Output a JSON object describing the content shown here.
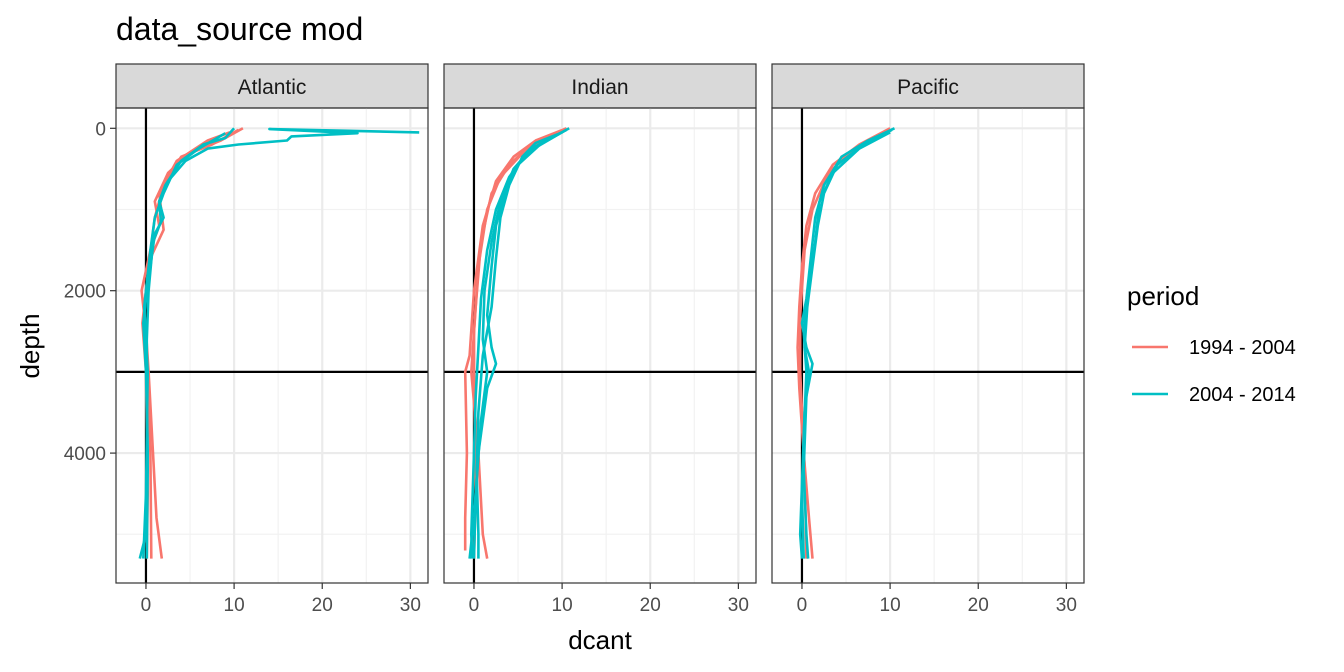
{
  "chart_data": {
    "type": "line",
    "title": "data_source mod",
    "xlabel": "dcant",
    "ylabel": "depth",
    "xlim": [
      -3.4,
      32.0
    ],
    "ylim": [
      5600,
      -250
    ],
    "y_reversed": true,
    "x_ticks": [
      0,
      10,
      20,
      30
    ],
    "y_ticks": [
      0,
      2000,
      4000
    ],
    "grid": true,
    "vline_x": 0,
    "hline_y": 3000,
    "legend": {
      "title": "period",
      "position": "right",
      "entries": [
        {
          "label": "1994 - 2004",
          "color": "#F8766D"
        },
        {
          "label": "2004 - 2014",
          "color": "#00BFC4"
        }
      ]
    },
    "panels": [
      {
        "name": "Atlantic",
        "lines": [
          {
            "period": "1994 - 2004",
            "points": [
              [
                11,
                0
              ],
              [
                8.5,
                150
              ],
              [
                5,
                300
              ],
              [
                2.5,
                550
              ],
              [
                1,
                900
              ],
              [
                1.5,
                1200
              ],
              [
                0.5,
                1500
              ],
              [
                -0.5,
                2000
              ],
              [
                0,
                2500
              ],
              [
                0.3,
                3000
              ],
              [
                0.8,
                4000
              ],
              [
                1.2,
                4800
              ],
              [
                1.8,
                5300
              ]
            ]
          },
          {
            "period": "1994 - 2004",
            "points": [
              [
                9.5,
                50
              ],
              [
                7,
                150
              ],
              [
                3.5,
                400
              ],
              [
                1.5,
                800
              ],
              [
                2,
                1250
              ],
              [
                0.5,
                1600
              ],
              [
                -0.2,
                2200
              ],
              [
                0.2,
                3000
              ],
              [
                0.5,
                4000
              ],
              [
                0.6,
                5300
              ]
            ]
          },
          {
            "period": "1994 - 2004",
            "points": [
              [
                10.5,
                20
              ],
              [
                7.5,
                200
              ],
              [
                4,
                350
              ],
              [
                2,
                700
              ],
              [
                1,
                1100
              ],
              [
                0.2,
                1800
              ],
              [
                -0.4,
                2400
              ],
              [
                0,
                3000
              ],
              [
                0.2,
                4500
              ],
              [
                0.1,
                5300
              ]
            ]
          },
          {
            "period": "2004 - 2014",
            "points": [
              [
                10,
                0
              ],
              [
                9,
                120
              ],
              [
                6.5,
                200
              ],
              [
                4,
                400
              ],
              [
                2.2,
                700
              ],
              [
                1.5,
                900
              ],
              [
                2,
                1100
              ],
              [
                1,
                1300
              ],
              [
                0.5,
                1700
              ],
              [
                0,
                2100
              ],
              [
                -0.3,
                2400
              ],
              [
                0,
                3000
              ],
              [
                0.2,
                4000
              ],
              [
                0,
                5000
              ],
              [
                -0.7,
                5300
              ]
            ]
          },
          {
            "period": "2004 - 2014",
            "points": [
              [
                31,
                50
              ],
              [
                14,
                10
              ],
              [
                24,
                60
              ],
              [
                16.5,
                100
              ],
              [
                16,
                150
              ],
              [
                10.5,
                200
              ],
              [
                7,
                250
              ],
              [
                4.5,
                400
              ],
              [
                2.5,
                650
              ],
              [
                1.5,
                900
              ],
              [
                1.7,
                1150
              ],
              [
                0.8,
                1400
              ],
              [
                0.3,
                2000
              ],
              [
                0.1,
                2600
              ],
              [
                0.1,
                3000
              ],
              [
                0.2,
                4200
              ],
              [
                0.1,
                5300
              ]
            ]
          },
          {
            "period": "2004 - 2014",
            "points": [
              [
                9,
                60
              ],
              [
                6,
                250
              ],
              [
                3.5,
                450
              ],
              [
                2,
                800
              ],
              [
                1,
                1100
              ],
              [
                0.5,
                1500
              ],
              [
                -0.2,
                2200
              ],
              [
                0.2,
                3000
              ],
              [
                0,
                4500
              ],
              [
                -0.3,
                5300
              ]
            ]
          }
        ]
      },
      {
        "name": "Indian",
        "lines": [
          {
            "period": "1994 - 2004",
            "points": [
              [
                10.5,
                0
              ],
              [
                7,
                150
              ],
              [
                4.5,
                350
              ],
              [
                2.5,
                650
              ],
              [
                1,
                1200
              ],
              [
                0,
                2000
              ],
              [
                -0.5,
                2800
              ],
              [
                -1,
                3000
              ],
              [
                -0.8,
                4000
              ],
              [
                -1,
                4800
              ],
              [
                -1,
                5200
              ]
            ]
          },
          {
            "period": "1994 - 2004",
            "points": [
              [
                9.5,
                50
              ],
              [
                6.5,
                200
              ],
              [
                4,
                450
              ],
              [
                2,
                800
              ],
              [
                0.8,
                1400
              ],
              [
                0.2,
                2200
              ],
              [
                -0.3,
                3000
              ],
              [
                0.5,
                4000
              ],
              [
                1,
                5000
              ],
              [
                1.5,
                5300
              ]
            ]
          },
          {
            "period": "1994 - 2004",
            "points": [
              [
                10,
                30
              ],
              [
                6,
                250
              ],
              [
                3,
                600
              ],
              [
                1.5,
                1000
              ],
              [
                0.5,
                1700
              ],
              [
                0,
                2500
              ],
              [
                0,
                3000
              ],
              [
                0.2,
                4500
              ],
              [
                0,
                5300
              ]
            ]
          },
          {
            "period": "2004 - 2014",
            "points": [
              [
                10.8,
                0
              ],
              [
                7.5,
                200
              ],
              [
                5,
                450
              ],
              [
                3.5,
                800
              ],
              [
                2.5,
                1200
              ],
              [
                2,
                1700
              ],
              [
                1.5,
                2300
              ],
              [
                2,
                2700
              ],
              [
                2.5,
                2900
              ],
              [
                1.5,
                3200
              ],
              [
                0.5,
                4000
              ],
              [
                0,
                4800
              ],
              [
                -0.5,
                5300
              ]
            ]
          },
          {
            "period": "2004 - 2014",
            "points": [
              [
                10.5,
                20
              ],
              [
                6.5,
                250
              ],
              [
                4.5,
                500
              ],
              [
                3,
                900
              ],
              [
                2,
                1400
              ],
              [
                1.2,
                2000
              ],
              [
                1,
                2600
              ],
              [
                1.5,
                3000
              ],
              [
                0.8,
                3600
              ],
              [
                0.2,
                4500
              ],
              [
                0,
                5300
              ]
            ]
          },
          {
            "period": "2004 - 2014",
            "points": [
              [
                10,
                50
              ],
              [
                7,
                180
              ],
              [
                5.5,
                350
              ],
              [
                4,
                700
              ],
              [
                3,
                1100
              ],
              [
                2.5,
                1600
              ],
              [
                2,
                2200
              ],
              [
                1,
                2800
              ],
              [
                0.5,
                3500
              ],
              [
                0.3,
                4200
              ],
              [
                0.5,
                5000
              ],
              [
                0.5,
                5300
              ]
            ]
          },
          {
            "period": "2004 - 2014",
            "points": [
              [
                9.8,
                60
              ],
              [
                6,
                300
              ],
              [
                4,
                600
              ],
              [
                2.5,
                1000
              ],
              [
                1.5,
                1500
              ],
              [
                0.8,
                2100
              ],
              [
                0.5,
                2700
              ],
              [
                0.2,
                3300
              ],
              [
                0,
                4000
              ],
              [
                -0.3,
                5000
              ],
              [
                -0.2,
                5300
              ]
            ]
          }
        ]
      },
      {
        "name": "Pacific",
        "lines": [
          {
            "period": "1994 - 2004",
            "points": [
              [
                10,
                0
              ],
              [
                6.5,
                200
              ],
              [
                3.5,
                450
              ],
              [
                1.5,
                800
              ],
              [
                0.5,
                1200
              ],
              [
                0,
                1700
              ],
              [
                -0.3,
                2200
              ],
              [
                -0.5,
                2700
              ],
              [
                -0.3,
                3200
              ],
              [
                0.2,
                4000
              ],
              [
                0.8,
                4800
              ],
              [
                1.2,
                5300
              ]
            ]
          },
          {
            "period": "1994 - 2004",
            "points": [
              [
                9.5,
                50
              ],
              [
                6,
                250
              ],
              [
                3,
                550
              ],
              [
                1.2,
                1000
              ],
              [
                0.3,
                1500
              ],
              [
                -0.2,
                2300
              ],
              [
                -0.2,
                3000
              ],
              [
                0.3,
                4200
              ],
              [
                0.5,
                5300
              ]
            ]
          },
          {
            "period": "2004 - 2014",
            "points": [
              [
                10.5,
                0
              ],
              [
                7.5,
                150
              ],
              [
                4.5,
                350
              ],
              [
                2.5,
                700
              ],
              [
                1.5,
                1100
              ],
              [
                1,
                1600
              ],
              [
                0.5,
                2100
              ],
              [
                0,
                2400
              ],
              [
                0.5,
                2700
              ],
              [
                1.2,
                2900
              ],
              [
                0.5,
                3300
              ],
              [
                0.2,
                4200
              ],
              [
                0.5,
                5000
              ],
              [
                0.7,
                5300
              ]
            ]
          },
          {
            "period": "2004 - 2014",
            "points": [
              [
                10.2,
                20
              ],
              [
                7,
                200
              ],
              [
                4,
                450
              ],
              [
                2.5,
                800
              ],
              [
                1.8,
                1200
              ],
              [
                1.2,
                1700
              ],
              [
                0.6,
                2200
              ],
              [
                0.3,
                2700
              ],
              [
                0.8,
                3000
              ],
              [
                0.3,
                3500
              ],
              [
                0,
                4500
              ],
              [
                0.2,
                5300
              ]
            ]
          },
          {
            "period": "2004 - 2014",
            "points": [
              [
                10,
                50
              ],
              [
                6.5,
                250
              ],
              [
                3.5,
                550
              ],
              [
                2,
                900
              ],
              [
                1.5,
                1400
              ],
              [
                0.8,
                1900
              ],
              [
                0.2,
                2500
              ],
              [
                0.5,
                3000
              ],
              [
                0.2,
                3800
              ],
              [
                -0.2,
                5000
              ],
              [
                0,
                5300
              ]
            ]
          }
        ]
      }
    ]
  }
}
